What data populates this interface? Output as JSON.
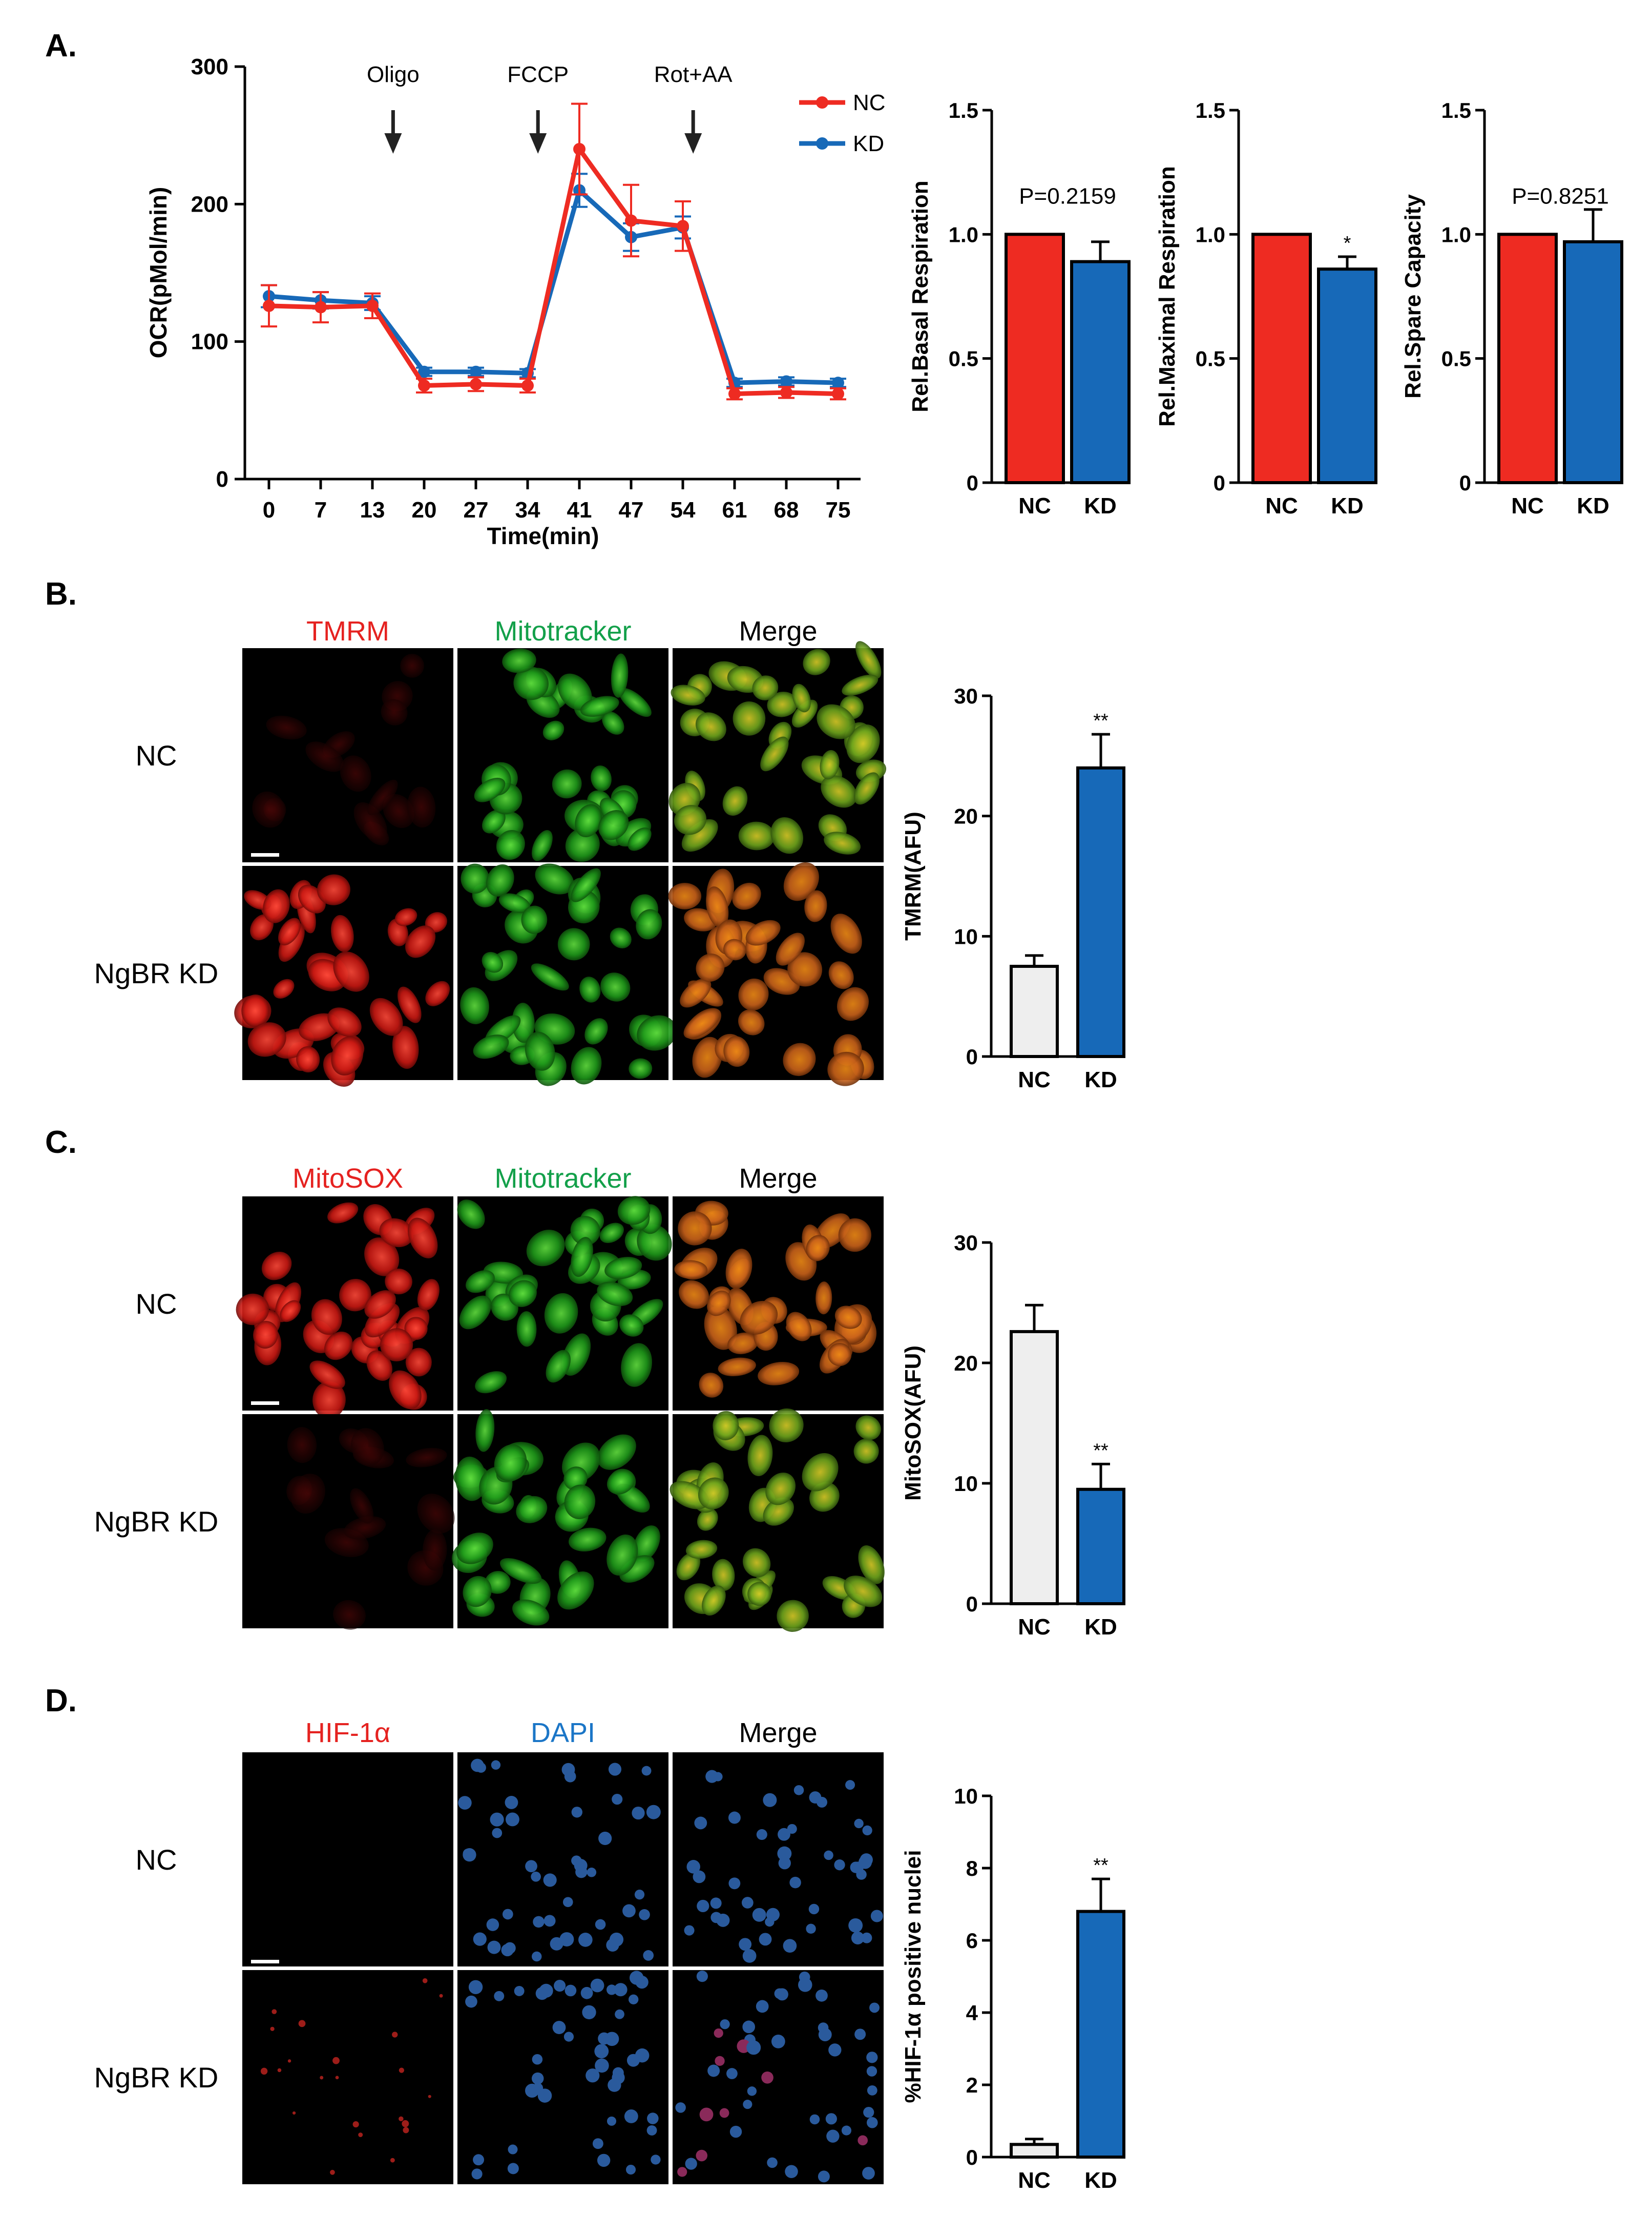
{
  "panel_labels": {
    "a": "A.",
    "b": "B.",
    "c": "C.",
    "d": "D."
  },
  "colors": {
    "nc_red": "#ee2b22",
    "kd_blue": "#1769b8",
    "nc_gray": "#eeeeee",
    "tmrm_red": "#e52220",
    "mito_green": "#13a04a",
    "dapi_blue": "#1b76c7",
    "dot_blue": "#2a5a9c",
    "dot_red": "#e02a24"
  },
  "panel_a": {
    "ocr": {
      "type": "line",
      "ylabel": "OCR(pMol/min)",
      "xlabel": "Time(min)",
      "ylim": [
        0,
        300
      ],
      "yticks": [
        "0",
        "100",
        "200",
        "300"
      ],
      "xticks": [
        "0",
        "7",
        "13",
        "20",
        "27",
        "34",
        "41",
        "47",
        "54",
        "61",
        "68",
        "75"
      ],
      "legend": [
        "NC",
        "KD"
      ],
      "annotations": [
        "Oligo",
        "FCCP",
        "Rot+AA"
      ],
      "annotation_index": [
        2.4,
        5.2,
        8.2
      ],
      "series": [
        {
          "name": "NC",
          "values": [
            126,
            125,
            126,
            68,
            69,
            68,
            240,
            188,
            184,
            62,
            63,
            62
          ],
          "err": [
            15,
            11,
            9,
            5,
            5,
            5,
            33,
            26,
            18,
            4,
            4,
            4
          ]
        },
        {
          "name": "KD",
          "values": [
            133,
            130,
            128,
            78,
            78,
            77,
            210,
            176,
            183,
            70,
            71,
            70
          ],
          "err": [
            8,
            6,
            5,
            3,
            3,
            3,
            12,
            10,
            8,
            3,
            3,
            3
          ]
        }
      ]
    },
    "basal": {
      "type": "bar",
      "ylabel": "Rel.Basal Respiration",
      "categories": [
        "NC",
        "KD"
      ],
      "values": [
        1.0,
        0.89
      ],
      "err": [
        0,
        0.08
      ],
      "ylim": [
        0,
        1.5
      ],
      "yticks": [
        "0",
        "0.5",
        "1.0",
        "1.5"
      ],
      "annotation": "P=0.2159"
    },
    "maximal": {
      "type": "bar",
      "ylabel": "Rel.Maximal Respiration",
      "categories": [
        "NC",
        "KD"
      ],
      "values": [
        1.0,
        0.86
      ],
      "err": [
        0,
        0.05
      ],
      "ylim": [
        0,
        1.5
      ],
      "yticks": [
        "0",
        "0.5",
        "1.0",
        "1.5"
      ],
      "star": "*"
    },
    "spare": {
      "type": "bar",
      "ylabel": "Rel.Spare Capacity",
      "categories": [
        "NC",
        "KD"
      ],
      "values": [
        1.0,
        0.97
      ],
      "err": [
        0,
        0.13
      ],
      "ylim": [
        0,
        1.5
      ],
      "yticks": [
        "0",
        "0.5",
        "1.0",
        "1.5"
      ],
      "annotation": "P=0.8251"
    }
  },
  "panel_b": {
    "columns": [
      "TMRM",
      "Mitotracker",
      "Merge"
    ],
    "rows": [
      "NC",
      "NgBR KD"
    ],
    "chart": {
      "type": "bar",
      "ylabel": "TMRM(AFU)",
      "categories": [
        "NC",
        "KD"
      ],
      "values": [
        7.5,
        24.0
      ],
      "err": [
        0.9,
        2.8
      ],
      "ylim": [
        0,
        30
      ],
      "yticks": [
        "0",
        "10",
        "20",
        "30"
      ],
      "star": "**"
    }
  },
  "panel_c": {
    "columns": [
      "MitoSOX",
      "Mitotracker",
      "Merge"
    ],
    "rows": [
      "NC",
      "NgBR KD"
    ],
    "chart": {
      "type": "bar",
      "ylabel": "MitoSOX(AFU)",
      "categories": [
        "NC",
        "KD"
      ],
      "values": [
        22.6,
        9.5
      ],
      "err": [
        2.2,
        2.1
      ],
      "ylim": [
        0,
        30
      ],
      "yticks": [
        "0",
        "10",
        "20",
        "30"
      ],
      "star": "**"
    }
  },
  "panel_d": {
    "columns": [
      "HIF-1α",
      "DAPI",
      "Merge"
    ],
    "rows": [
      "NC",
      "NgBR KD"
    ],
    "chart": {
      "type": "bar",
      "ylabel": "%HIF-1α positive nuclei",
      "categories": [
        "NC",
        "KD"
      ],
      "values": [
        0.35,
        6.8
      ],
      "err": [
        0.15,
        0.9
      ],
      "ylim": [
        0,
        10
      ],
      "yticks": [
        "0",
        "2",
        "4",
        "6",
        "8",
        "10"
      ],
      "star": "**"
    }
  }
}
